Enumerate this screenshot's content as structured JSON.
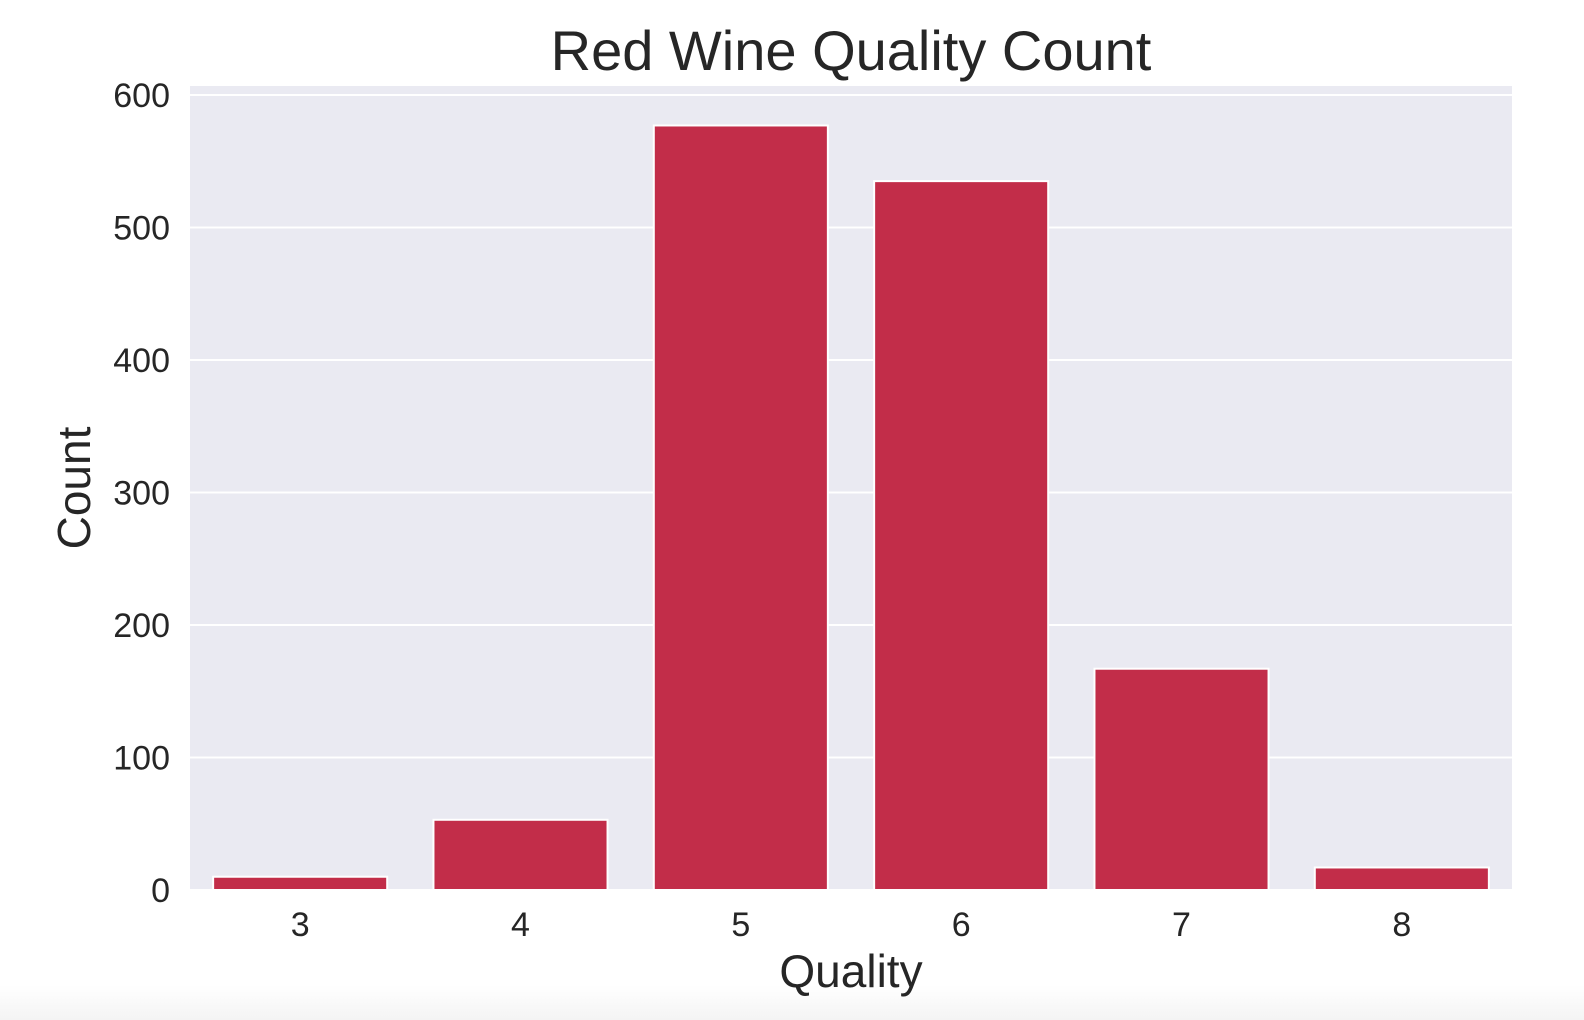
{
  "chart_data": {
    "type": "bar",
    "title": "Red Wine Quality Count",
    "xlabel": "Quality",
    "ylabel": "Count",
    "categories": [
      "3",
      "4",
      "5",
      "6",
      "7",
      "8"
    ],
    "values": [
      10,
      53,
      577,
      535,
      167,
      17
    ],
    "ylim": [
      0,
      600
    ],
    "yticks": [
      0,
      100,
      200,
      300,
      400,
      500,
      600
    ],
    "ytick_labels": [
      "0",
      "100",
      "200",
      "300",
      "400",
      "500",
      "600"
    ],
    "grid": true,
    "legend": "none"
  },
  "colors": {
    "bar": "#c22d49",
    "plot_background": "#eaeaf2",
    "grid": "#ffffff",
    "text": "#262626"
  }
}
